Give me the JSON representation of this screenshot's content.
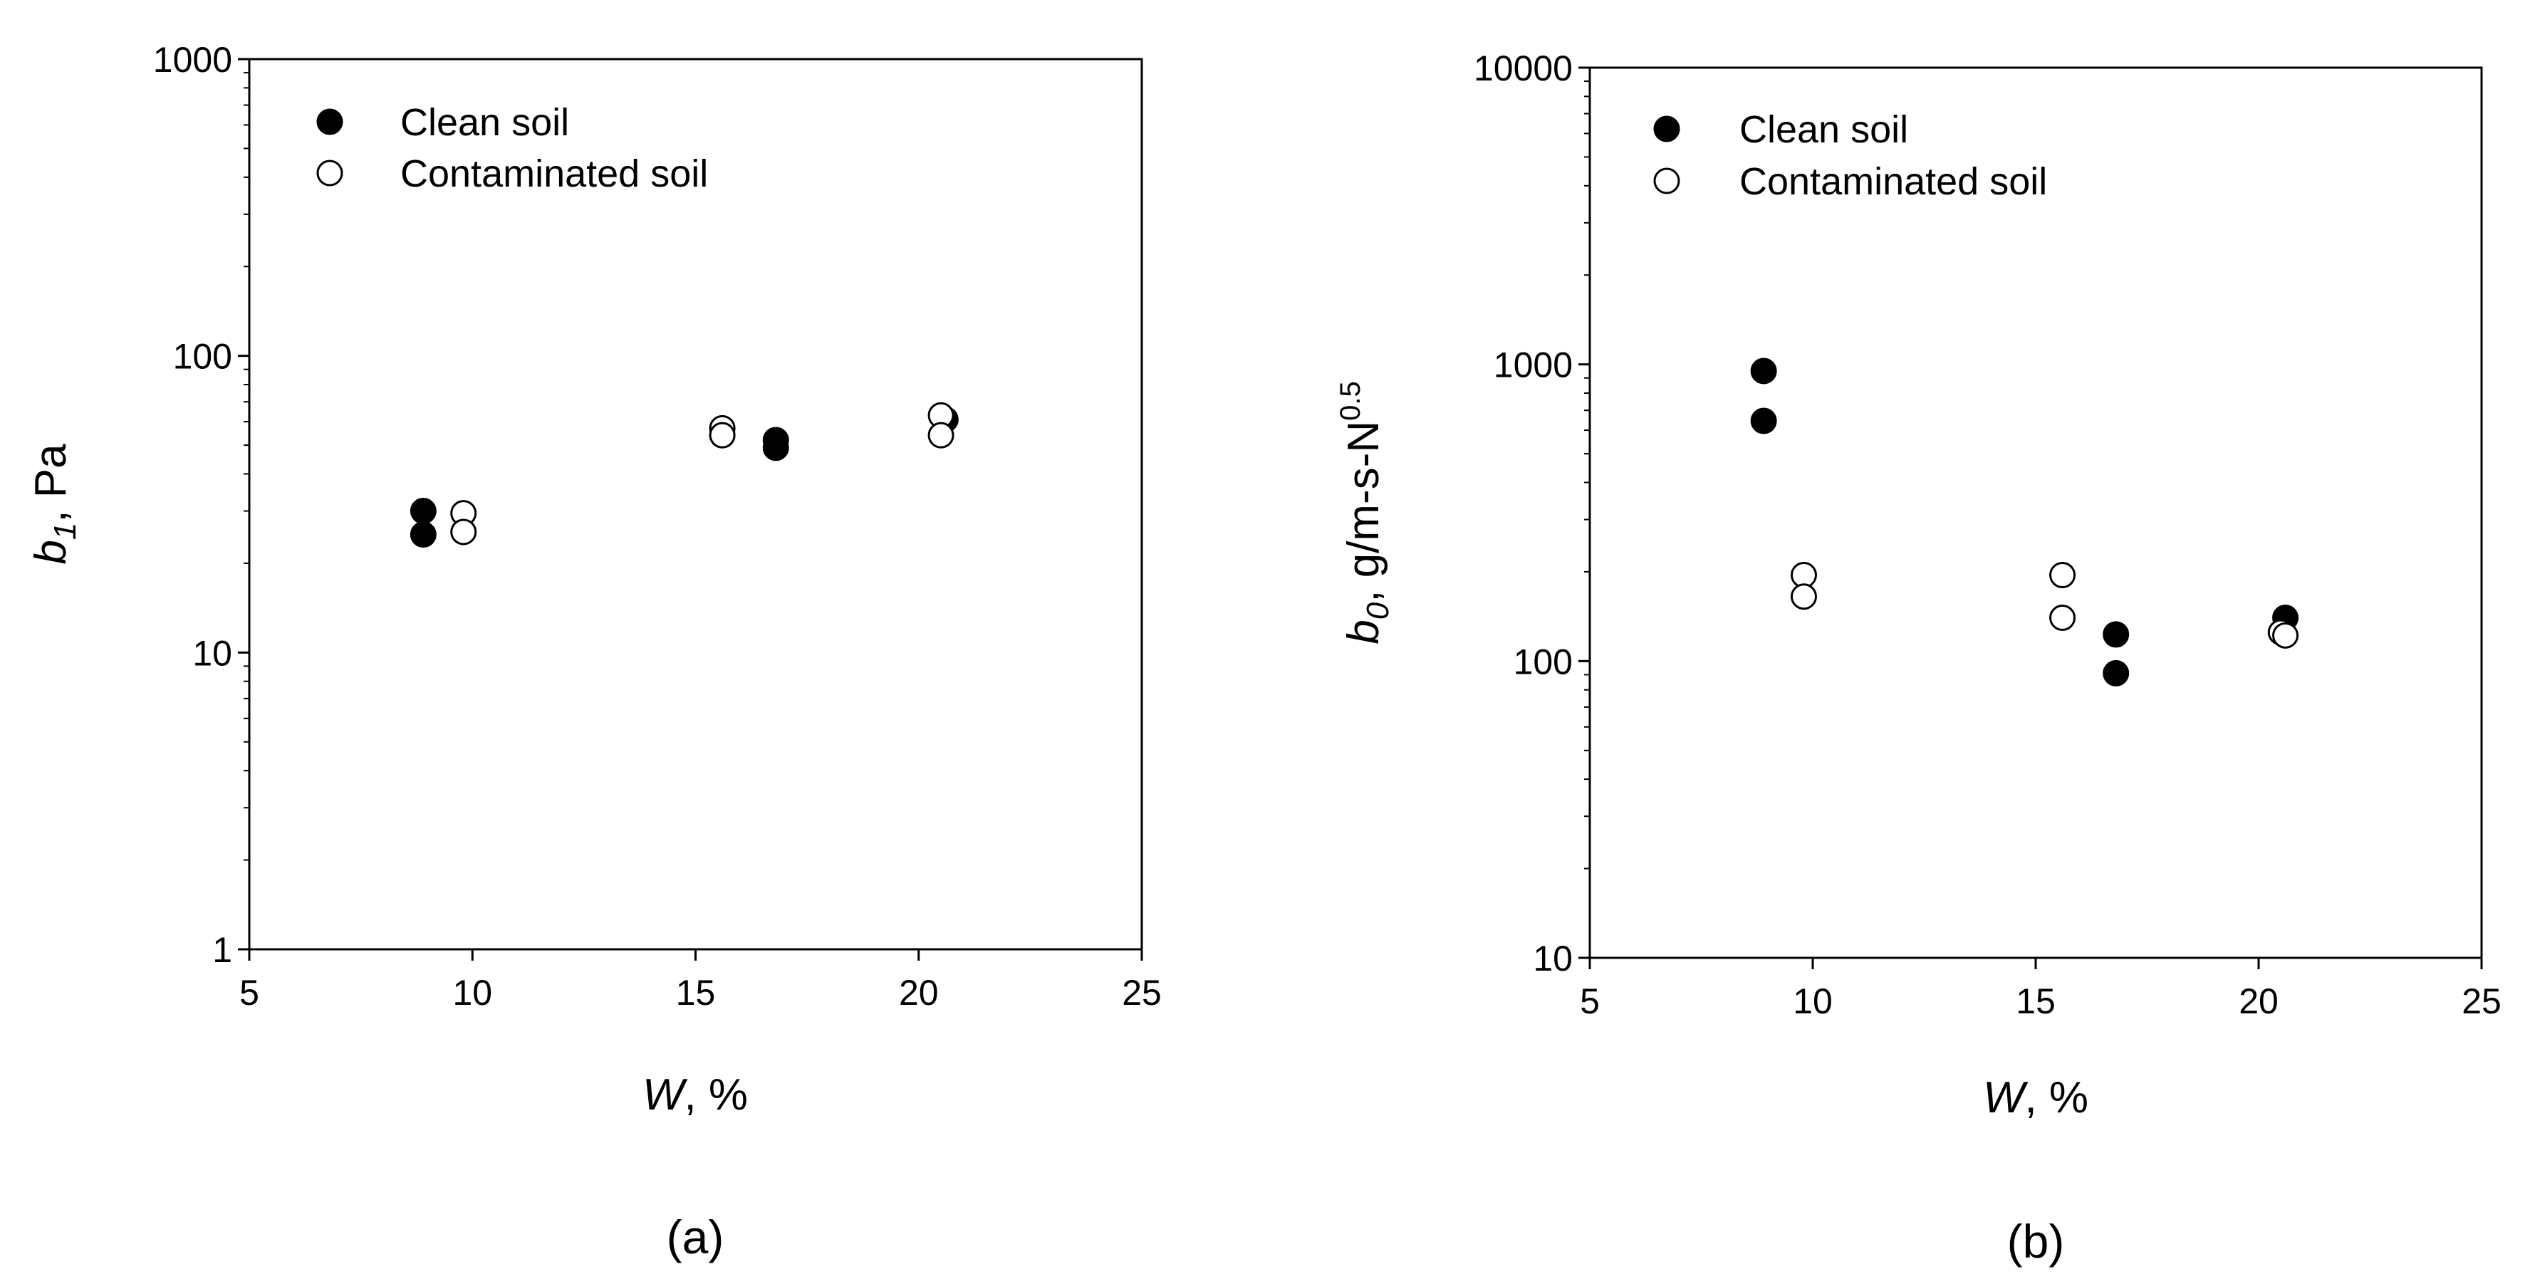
{
  "chart_data": [
    {
      "type": "scatter",
      "panel_label": "(a)",
      "xlabel_var": "W",
      "xlabel_rest": ", %",
      "ylabel_var": "b",
      "ylabel_sub": "1",
      "ylabel_rest": ", Pa",
      "xlim": [
        5,
        25
      ],
      "ylim": [
        1,
        1000
      ],
      "yscale": "log",
      "xticks": [
        5,
        10,
        15,
        20,
        25
      ],
      "yticks": [
        1,
        10,
        100,
        1000
      ],
      "xtick_labels": [
        "5",
        "10",
        "15",
        "20",
        "25"
      ],
      "ytick_labels": [
        "1",
        "10",
        "100",
        "1000"
      ],
      "grid": false,
      "legend_position": "top-left",
      "series": [
        {
          "name": "Clean soil",
          "marker": "filled-circle",
          "color": "#000000",
          "x": [
            8.9,
            8.9,
            16.8,
            16.8,
            20.6
          ],
          "y": [
            30,
            25,
            52,
            49,
            61
          ]
        },
        {
          "name": "Contaminated soil",
          "marker": "open-circle",
          "color": "#000000",
          "x": [
            9.8,
            9.8,
            15.6,
            15.6,
            20.5,
            20.5
          ],
          "y": [
            29.5,
            25.5,
            57,
            54,
            63,
            54
          ]
        }
      ]
    },
    {
      "type": "scatter",
      "panel_label": "(b)",
      "xlabel_var": "W",
      "xlabel_rest": ", %",
      "ylabel_var": "b",
      "ylabel_sub": "0",
      "ylabel_rest": ", g/m-s-N",
      "ylabel_sup": "0.5",
      "xlim": [
        5,
        25
      ],
      "ylim": [
        10,
        10000
      ],
      "yscale": "log",
      "xticks": [
        5,
        10,
        15,
        20,
        25
      ],
      "yticks": [
        10,
        100,
        1000,
        10000
      ],
      "xtick_labels": [
        "5",
        "10",
        "15",
        "20",
        "25"
      ],
      "ytick_labels": [
        "10",
        "100",
        "1000",
        "10000"
      ],
      "grid": false,
      "legend_position": "top-left",
      "series": [
        {
          "name": "Clean soil",
          "marker": "filled-circle",
          "color": "#000000",
          "x": [
            8.9,
            8.9,
            16.8,
            16.8,
            20.6
          ],
          "y": [
            950,
            645,
            123,
            91,
            140
          ]
        },
        {
          "name": "Contaminated soil",
          "marker": "open-circle",
          "color": "#000000",
          "x": [
            9.8,
            9.8,
            15.6,
            15.6,
            20.5,
            20.6
          ],
          "y": [
            195,
            165,
            195,
            140,
            125,
            122
          ]
        }
      ]
    }
  ]
}
